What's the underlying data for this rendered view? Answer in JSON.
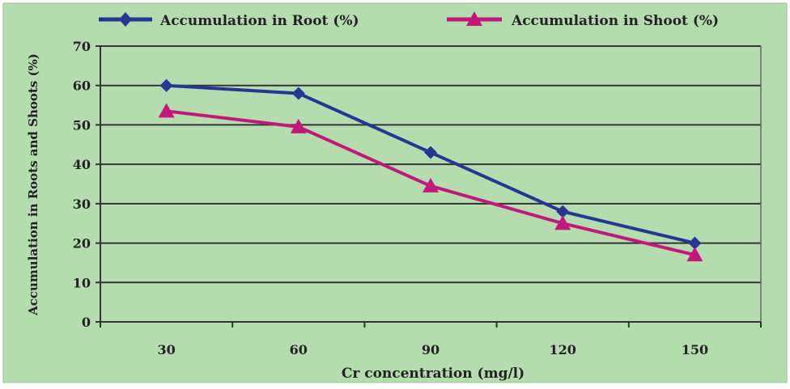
{
  "chart_data": {
    "type": "line",
    "title": "",
    "xlabel": "Cr concentration (mg/l)",
    "ylabel": "Accumulation in Roots and Shoots (%)",
    "categories": [
      "30",
      "60",
      "90",
      "120",
      "150"
    ],
    "ylim": [
      0,
      70
    ],
    "yticks": [
      "0",
      "10",
      "20",
      "30",
      "40",
      "50",
      "60",
      "70"
    ],
    "grid": true,
    "legend_position": "top",
    "series": [
      {
        "name": "Accumulation in Root (%)",
        "values": [
          60,
          58,
          43,
          28,
          20
        ],
        "color": "#283593",
        "marker": "diamond"
      },
      {
        "name": "Accumulation in Shoot (%)",
        "values": [
          53.5,
          49.5,
          34.5,
          25,
          17
        ],
        "color": "#c2187a",
        "marker": "triangle"
      }
    ],
    "background_color": "#b4dcae"
  }
}
